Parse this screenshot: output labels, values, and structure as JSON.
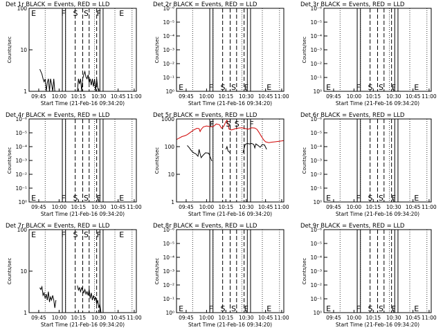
{
  "figure": {
    "start_time_label": "Start Time (21-Feb-16 09:34:20)",
    "ylabel": "Counts/sec",
    "time_ticks": [
      "09:45",
      "10:00",
      "10:15",
      "10:30",
      "10:45",
      "11:00"
    ],
    "colors": {
      "events": "#000000",
      "lld": "#d00000"
    }
  },
  "chart_data": [
    {
      "type": "line",
      "title": "Det 1r BLACK = Events, RED = LLD",
      "yscale": "log",
      "ylim": [
        1,
        100
      ],
      "ytick_labels": [
        "1",
        "10",
        "100"
      ],
      "markers": [
        "E",
        "F",
        "S",
        "S",
        "F",
        "E"
      ],
      "series": [
        {
          "color": "black",
          "points": [
            [
              0.1,
              3.4
            ],
            [
              0.11,
              3.0
            ],
            [
              0.12,
              2.6
            ],
            [
              0.13,
              2.0
            ],
            [
              0.14,
              1.7
            ],
            [
              0.15,
              2.0
            ],
            [
              0.16,
              1.0
            ],
            [
              0.17,
              1.6
            ],
            [
              0.18,
              2.0
            ],
            [
              0.19,
              1.0
            ],
            [
              0.2,
              2.0
            ],
            [
              0.21,
              1.5
            ],
            [
              0.22,
              1.0
            ],
            [
              0.23,
              2.0
            ],
            [
              0.24,
              1.0
            ]
          ]
        },
        {
          "color": "black",
          "points": [
            [
              0.45,
              1.0
            ],
            [
              0.46,
              2.0
            ],
            [
              0.47,
              1.5
            ],
            [
              0.48,
              2.0
            ],
            [
              0.49,
              1.0
            ],
            [
              0.5,
              2.0
            ],
            [
              0.51,
              2.5
            ],
            [
              0.52,
              3.0
            ],
            [
              0.53,
              2.2
            ],
            [
              0.54,
              2.0
            ],
            [
              0.55,
              2.5
            ],
            [
              0.56,
              1.6
            ],
            [
              0.57,
              2.0
            ],
            [
              0.58,
              1.4
            ],
            [
              0.59,
              2.0
            ],
            [
              0.6,
              1.3
            ],
            [
              0.61,
              2.0
            ],
            [
              0.62,
              1.0
            ],
            [
              0.63,
              2.0
            ],
            [
              0.64,
              1.2
            ],
            [
              0.65,
              1.0
            ]
          ]
        }
      ]
    },
    {
      "type": "line",
      "title": "Det 2r BLACK = Events, RED = LLD",
      "yscale": "log",
      "ylim": [
        1,
        1000000
      ],
      "ytick_labels": [
        "10⁰",
        "10⁻¹",
        "10⁻²",
        "10⁻³",
        "10⁻⁴",
        "10⁻⁵",
        "10⁻⁶"
      ],
      "markers": [
        "E",
        "F",
        "S",
        "S",
        "F",
        "E"
      ],
      "series": []
    },
    {
      "type": "line",
      "title": "Det 3r BLACK = Events, RED = LLD",
      "yscale": "log",
      "ylim": [
        1,
        1000000
      ],
      "ytick_labels": [
        "10⁰",
        "10⁻¹",
        "10⁻²",
        "10⁻³",
        "10⁻⁴",
        "10⁻⁵",
        "10⁻⁶"
      ],
      "markers": [
        "E",
        "F",
        "S",
        "S",
        "F",
        "E"
      ],
      "series": []
    },
    {
      "type": "line",
      "title": "Det 4r BLACK = Events, RED = LLD",
      "yscale": "log",
      "ylim": [
        1,
        1000000
      ],
      "ytick_labels": [
        "10⁰",
        "10⁻¹",
        "10⁻²",
        "10⁻³",
        "10⁻⁴",
        "10⁻⁵",
        "10⁻⁶"
      ],
      "markers": [
        "E",
        "F",
        "S",
        "S",
        "F",
        "E"
      ],
      "series": []
    },
    {
      "type": "line",
      "title": "Det 5r BLACK = Events, RED = LLD",
      "yscale": "log",
      "ylim": [
        1,
        1000
      ],
      "ytick_labels": [
        "1",
        "10",
        "100",
        "1000"
      ],
      "markers": [
        "F",
        "S",
        "S",
        "F"
      ],
      "series": [
        {
          "color": "red",
          "points": [
            [
              0.0,
              180
            ],
            [
              0.02,
              200
            ],
            [
              0.05,
              230
            ],
            [
              0.08,
              250
            ],
            [
              0.1,
              270
            ],
            [
              0.13,
              330
            ],
            [
              0.16,
              400
            ],
            [
              0.19,
              460
            ],
            [
              0.21,
              450
            ],
            [
              0.22,
              350
            ],
            [
              0.23,
              420
            ],
            [
              0.25,
              520
            ],
            [
              0.28,
              560
            ],
            [
              0.3,
              540
            ],
            [
              0.33,
              520
            ],
            [
              0.35,
              560
            ],
            [
              0.37,
              660
            ],
            [
              0.4,
              620
            ],
            [
              0.42,
              460
            ],
            [
              0.44,
              540
            ],
            [
              0.46,
              800
            ],
            [
              0.47,
              900
            ],
            [
              0.48,
              650
            ],
            [
              0.49,
              430
            ],
            [
              0.51,
              400
            ],
            [
              0.53,
              420
            ],
            [
              0.55,
              450
            ],
            [
              0.58,
              470
            ],
            [
              0.61,
              480
            ],
            [
              0.64,
              450
            ],
            [
              0.67,
              430
            ],
            [
              0.7,
              480
            ],
            [
              0.73,
              470
            ],
            [
              0.75,
              420
            ],
            [
              0.77,
              320
            ],
            [
              0.79,
              240
            ],
            [
              0.81,
              180
            ],
            [
              0.83,
              150
            ],
            [
              0.86,
              140
            ],
            [
              0.89,
              145
            ],
            [
              0.92,
              150
            ],
            [
              0.95,
              155
            ],
            [
              0.98,
              160
            ],
            [
              1.0,
              165
            ]
          ]
        },
        {
          "color": "black",
          "points": [
            [
              0.1,
              110
            ],
            [
              0.12,
              90
            ],
            [
              0.14,
              70
            ],
            [
              0.16,
              60
            ],
            [
              0.18,
              55
            ],
            [
              0.2,
              45
            ],
            [
              0.21,
              80
            ],
            [
              0.22,
              55
            ],
            [
              0.23,
              40
            ],
            [
              0.25,
              50
            ],
            [
              0.27,
              60
            ],
            [
              0.3,
              58
            ],
            [
              0.33,
              30
            ]
          ]
        },
        {
          "color": "black",
          "points": [
            [
              0.46,
              80
            ],
            [
              0.47,
              100
            ],
            [
              0.48,
              70
            ],
            [
              0.5,
              60
            ]
          ]
        },
        {
          "color": "black",
          "points": [
            [
              0.62,
              60
            ],
            [
              0.64,
              120
            ],
            [
              0.66,
              130
            ],
            [
              0.68,
              125
            ],
            [
              0.7,
              130
            ],
            [
              0.72,
              120
            ],
            [
              0.73,
              90
            ],
            [
              0.74,
              125
            ],
            [
              0.76,
              110
            ],
            [
              0.78,
              95
            ],
            [
              0.8,
              120
            ],
            [
              0.82,
              115
            ],
            [
              0.84,
              80
            ]
          ]
        }
      ]
    },
    {
      "type": "line",
      "title": "Det 6r BLACK = Events, RED = LLD",
      "yscale": "log",
      "ylim": [
        1,
        1000000
      ],
      "ytick_labels": [
        "10⁰",
        "10⁻¹",
        "10⁻²",
        "10⁻³",
        "10⁻⁴",
        "10⁻⁵",
        "10⁻⁶"
      ],
      "markers": [
        "E",
        "F",
        "S",
        "S",
        "F",
        "E"
      ],
      "series": []
    },
    {
      "type": "line",
      "title": "Det 7r BLACK = Events, RED = LLD",
      "yscale": "log",
      "ylim": [
        1,
        100
      ],
      "ytick_labels": [
        "1",
        "10",
        "100"
      ],
      "markers": [
        "E",
        "F",
        "S",
        "S",
        "F",
        "E"
      ],
      "series": [
        {
          "color": "black",
          "points": [
            [
              0.1,
              4.0
            ],
            [
              0.11,
              3.6
            ],
            [
              0.12,
              4.2
            ],
            [
              0.13,
              2.6
            ],
            [
              0.14,
              3.0
            ],
            [
              0.15,
              2.2
            ],
            [
              0.16,
              2.8
            ],
            [
              0.17,
              2.0
            ],
            [
              0.18,
              3.2
            ],
            [
              0.19,
              1.8
            ],
            [
              0.2,
              2.4
            ],
            [
              0.21,
              2.0
            ],
            [
              0.22,
              2.6
            ],
            [
              0.23,
              2.0
            ],
            [
              0.24,
              1.3
            ],
            [
              0.25,
              2.0
            ]
          ]
        },
        {
          "color": "black",
          "points": [
            [
              0.45,
              4.5
            ],
            [
              0.46,
              3.5
            ],
            [
              0.47,
              4.0
            ],
            [
              0.48,
              3.2
            ],
            [
              0.49,
              4.0
            ],
            [
              0.5,
              3.5
            ],
            [
              0.51,
              3.0
            ],
            [
              0.52,
              3.6
            ],
            [
              0.53,
              2.8
            ],
            [
              0.54,
              3.2
            ],
            [
              0.55,
              2.6
            ],
            [
              0.56,
              3.6
            ],
            [
              0.57,
              2.2
            ],
            [
              0.58,
              3.0
            ],
            [
              0.59,
              2.0
            ],
            [
              0.6,
              2.6
            ],
            [
              0.61,
              2.0
            ],
            [
              0.62,
              2.4
            ],
            [
              0.63,
              1.6
            ],
            [
              0.64,
              2.0
            ],
            [
              0.65,
              1.3
            ],
            [
              0.66,
              1.6
            ],
            [
              0.67,
              1.0
            ]
          ]
        }
      ]
    },
    {
      "type": "line",
      "title": "Det 8r BLACK = Events, RED = LLD",
      "yscale": "log",
      "ylim": [
        1,
        1000000
      ],
      "ytick_labels": [
        "10⁰",
        "10⁻¹",
        "10⁻²",
        "10⁻³",
        "10⁻⁴",
        "10⁻⁵",
        "10⁻⁶"
      ],
      "markers": [
        "E",
        "F",
        "S",
        "S",
        "F",
        "E"
      ],
      "series": []
    },
    {
      "type": "line",
      "title": "Det 9r BLACK = Events, RED = LLD",
      "yscale": "log",
      "ylim": [
        1,
        1000000
      ],
      "ytick_labels": [
        "10⁰",
        "10⁻¹",
        "10⁻²",
        "10⁻³",
        "10⁻⁴",
        "10⁻⁵",
        "10⁻⁶"
      ],
      "markers": [
        "E",
        "F",
        "S",
        "S",
        "F",
        "E"
      ],
      "series": []
    }
  ]
}
